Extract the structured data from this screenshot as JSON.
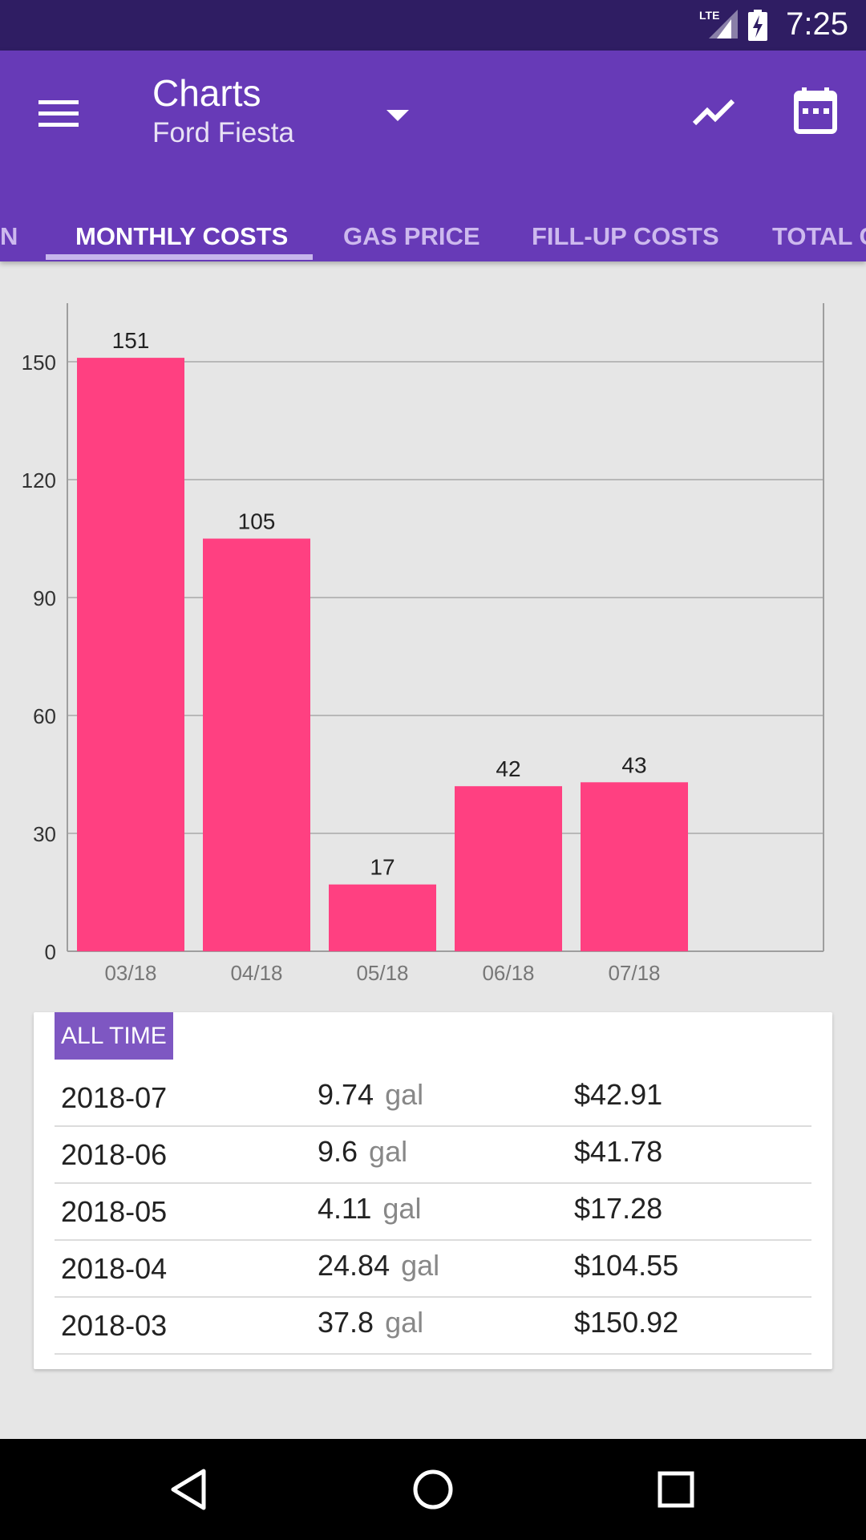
{
  "status_bar": {
    "time": "7:25",
    "network": "LTE",
    "icons": [
      "lte-signal-icon",
      "battery-charging-icon"
    ]
  },
  "app_bar": {
    "title": "Charts",
    "subtitle": "Ford Fiesta",
    "icons": [
      "menu-icon",
      "dropdown-arrow-icon",
      "trend-chart-icon",
      "calendar-icon"
    ]
  },
  "tabs": [
    {
      "label": "N"
    },
    {
      "label": "MONTHLY COSTS",
      "active": true
    },
    {
      "label": "GAS PRICE"
    },
    {
      "label": "FILL-UP COSTS"
    },
    {
      "label": "TOTAL C"
    }
  ],
  "chart_data": {
    "type": "bar",
    "categories": [
      "03/18",
      "04/18",
      "05/18",
      "06/18",
      "07/18"
    ],
    "values": [
      151,
      105,
      17,
      42,
      43
    ],
    "value_labels": [
      "151",
      "105",
      "17",
      "42",
      "43"
    ],
    "y_ticks": [
      0,
      30,
      60,
      90,
      120,
      150
    ],
    "ylim": [
      0,
      165
    ],
    "grid": true,
    "bar_color": "#ff4081",
    "title": "",
    "xlabel": "",
    "ylabel": ""
  },
  "summary": {
    "badge": "ALL TIME",
    "rows": [
      {
        "date": "2018-07",
        "volume": "9.74",
        "unit": "gal",
        "cost": "$42.91"
      },
      {
        "date": "2018-06",
        "volume": "9.6",
        "unit": "gal",
        "cost": "$41.78"
      },
      {
        "date": "2018-05",
        "volume": "4.11",
        "unit": "gal",
        "cost": "$17.28"
      },
      {
        "date": "2018-04",
        "volume": "24.84",
        "unit": "gal",
        "cost": "$104.55"
      },
      {
        "date": "2018-03",
        "volume": "37.8",
        "unit": "gal",
        "cost": "$150.92"
      }
    ]
  },
  "nav_bar": {
    "icons": [
      "back-icon",
      "home-icon",
      "recents-icon"
    ]
  },
  "colors": {
    "status_bar": "#2f1d63",
    "app_bar": "#673ab7",
    "accent": "#ff4081",
    "badge": "#7e57c2"
  }
}
